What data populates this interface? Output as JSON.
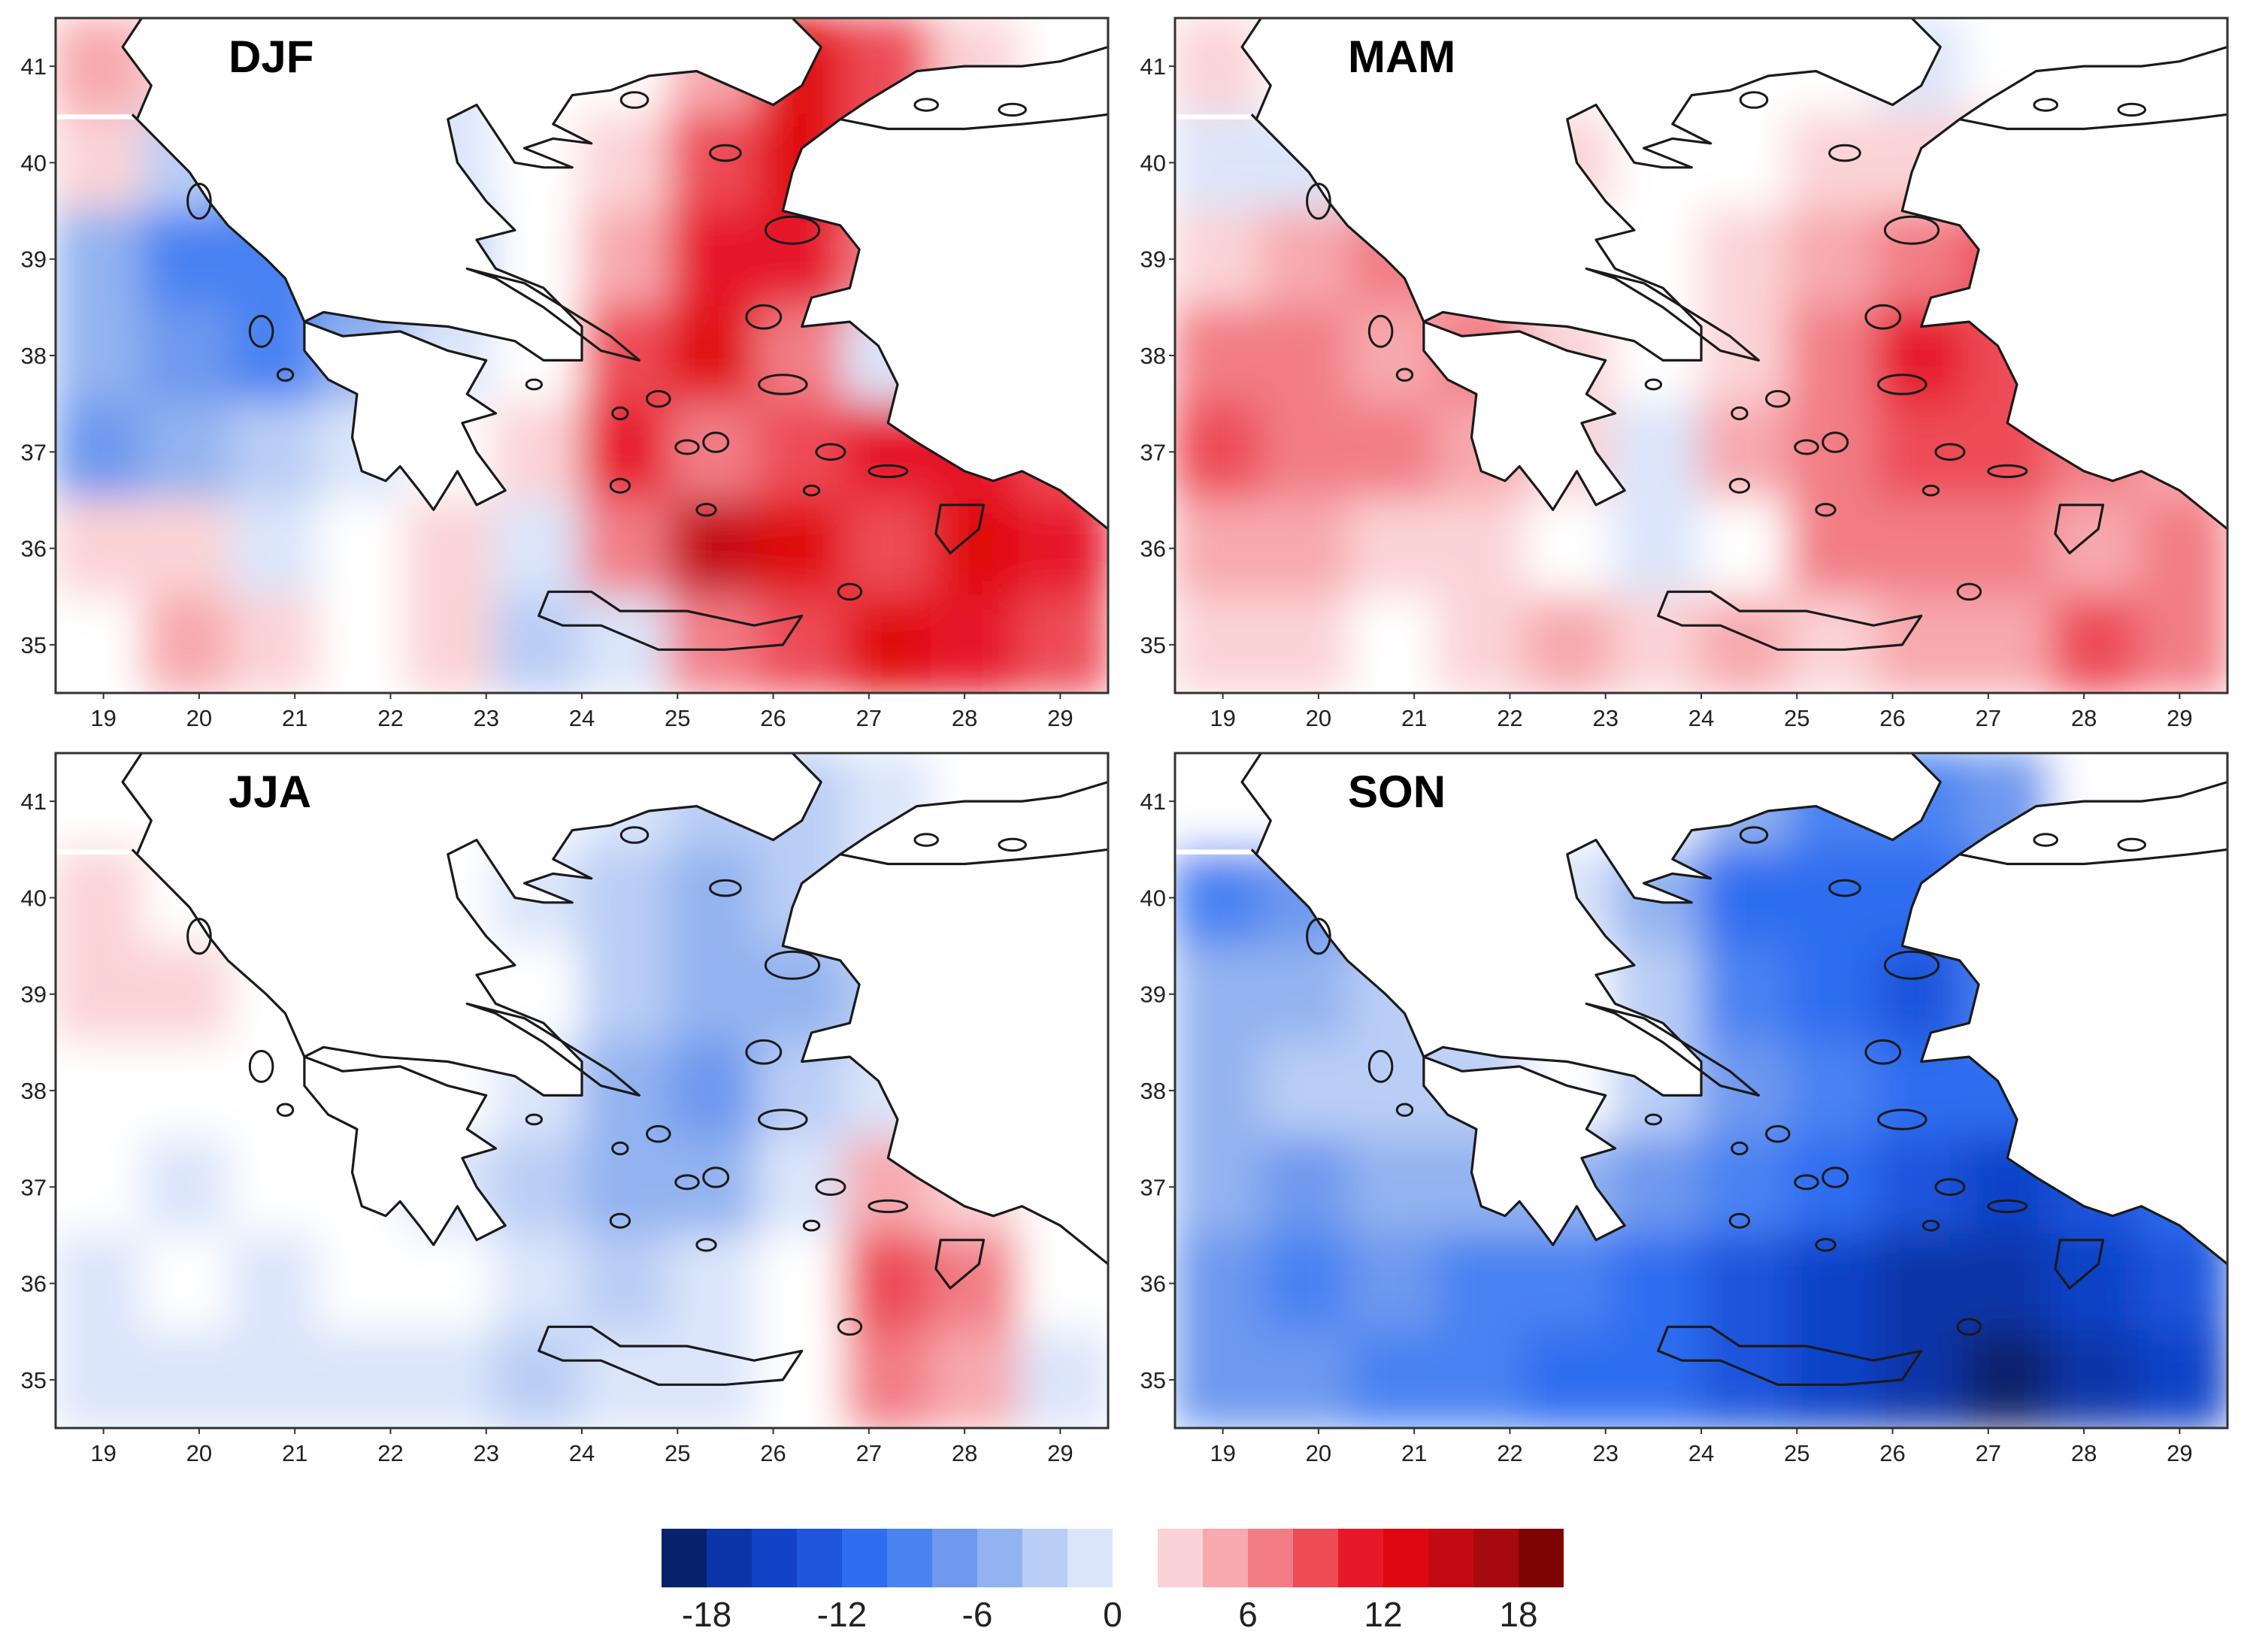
{
  "figure": {
    "panels": [
      {
        "id": "djf",
        "label": "DJF",
        "bias": [
          [
            4,
            3,
            1,
            -1,
            -2,
            0,
            0,
            5,
            12,
            8,
            2,
            0
          ],
          [
            3,
            -4,
            -8,
            -6,
            -2,
            0,
            2,
            9,
            13,
            9,
            3,
            0
          ],
          [
            -5,
            -10,
            -9,
            -8,
            -3,
            0,
            4,
            11,
            10,
            6,
            4,
            0
          ],
          [
            -6,
            -8,
            -9,
            -5,
            -1,
            0,
            8,
            12,
            6,
            -2,
            8,
            7
          ],
          [
            -7,
            -6,
            -4,
            -2,
            1,
            3,
            11,
            7,
            9,
            10,
            11,
            9
          ],
          [
            2,
            3,
            -1,
            1,
            2,
            -2,
            6,
            14,
            12,
            9,
            12,
            10
          ],
          [
            1,
            4,
            2,
            0,
            3,
            -4,
            -2,
            7,
            8,
            12,
            10,
            9
          ]
        ]
      },
      {
        "id": "mam",
        "label": "MAM",
        "bias": [
          [
            2,
            1,
            0,
            0,
            0,
            0,
            0,
            1,
            -1,
            0,
            0,
            0
          ],
          [
            -1,
            -2,
            -1,
            2,
            3,
            0,
            1,
            3,
            2,
            3,
            2,
            0
          ],
          [
            3,
            4,
            6,
            4,
            1,
            0,
            2,
            5,
            7,
            8,
            4,
            0
          ],
          [
            6,
            7,
            5,
            6,
            2,
            0,
            3,
            6,
            10,
            9,
            5,
            0
          ],
          [
            8,
            7,
            6,
            5,
            3,
            -2,
            4,
            7,
            9,
            8,
            6,
            4
          ],
          [
            5,
            4,
            3,
            3,
            0,
            -1,
            1,
            6,
            7,
            6,
            4,
            6
          ],
          [
            2,
            2,
            1,
            3,
            4,
            2,
            5,
            3,
            4,
            5,
            8,
            7
          ]
        ]
      },
      {
        "id": "jja",
        "label": "JJA",
        "bias": [
          [
            0,
            0,
            0,
            0,
            0,
            0,
            -2,
            -3,
            -3,
            -2,
            0,
            0
          ],
          [
            2,
            0,
            -1,
            0,
            0,
            -2,
            -4,
            -5,
            -4,
            -2,
            0,
            0
          ],
          [
            3,
            2,
            0,
            0,
            0,
            0,
            -3,
            -6,
            -6,
            -4,
            0,
            0
          ],
          [
            1,
            0,
            0,
            0,
            0,
            -2,
            -5,
            -7,
            -4,
            -2,
            0,
            0
          ],
          [
            0,
            -1,
            0,
            0,
            -1,
            -3,
            -6,
            -5,
            -2,
            4,
            2,
            0
          ],
          [
            -1,
            0,
            -1,
            0,
            0,
            -2,
            -4,
            -2,
            0,
            8,
            6,
            0
          ],
          [
            -1,
            -2,
            -1,
            -1,
            -2,
            -3,
            -2,
            -1,
            0,
            7,
            4,
            -1
          ]
        ]
      },
      {
        "id": "son",
        "label": "SON",
        "bias": [
          [
            0,
            0,
            0,
            0,
            0,
            0,
            -6,
            -10,
            -10,
            -8,
            0,
            0
          ],
          [
            -9,
            -7,
            -5,
            -3,
            -2,
            -5,
            -11,
            -12,
            -11,
            -9,
            0,
            0
          ],
          [
            -6,
            -5,
            -4,
            -2,
            0,
            -4,
            -9,
            -12,
            -13,
            -10,
            -4,
            0
          ],
          [
            -5,
            -4,
            -4,
            -3,
            0,
            -3,
            -7,
            -10,
            -11,
            -12,
            -11,
            -8
          ],
          [
            -6,
            -7,
            -5,
            -5,
            -6,
            -7,
            -9,
            -11,
            -13,
            -15,
            -14,
            -12
          ],
          [
            -8,
            -9,
            -8,
            -9,
            -9,
            -11,
            -13,
            -15,
            -17,
            -18,
            -16,
            -14
          ],
          [
            -7,
            -8,
            -9,
            -10,
            -11,
            -12,
            -14,
            -16,
            -18,
            -19,
            -18,
            -15
          ]
        ]
      }
    ],
    "x_ticks": [
      "19",
      "20",
      "21",
      "22",
      "23",
      "24",
      "25",
      "26",
      "27",
      "28",
      "29"
    ],
    "y_ticks": [
      "35",
      "36",
      "37",
      "38",
      "39",
      "40",
      "41"
    ]
  },
  "colorbar": {
    "colors": [
      "#08216b",
      "#0c35a8",
      "#1142c8",
      "#1d55dc",
      "#2f6df0",
      "#4a82f2",
      "#6e99ef",
      "#93b3f0",
      "#b9cdf5",
      "#dbe5fa",
      "#ffffff",
      "#fbd3d6",
      "#f7a9ae",
      "#f27d85",
      "#ed4b56",
      "#e6192b",
      "#e00810",
      "#c40a12",
      "#a60a10",
      "#7f0505"
    ],
    "tick_labels": [
      "-18",
      "-12",
      "-6",
      "0",
      "6",
      "12",
      "18"
    ]
  },
  "style": {
    "land": "#ffffff",
    "coast": "#1a1a1a",
    "frame": "#333333",
    "text": "#222222"
  }
}
